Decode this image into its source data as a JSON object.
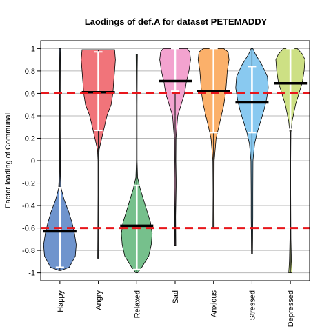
{
  "chart_data": {
    "type": "violin",
    "title": "Laodings of def.A for dataset PETEMADDY",
    "xlabel": "",
    "ylabel": "Factor loading of Communal",
    "ylim": [
      -1.07,
      1.07
    ],
    "yticks": [
      -1,
      -0.8,
      -0.6,
      -0.4,
      -0.2,
      0,
      0.2,
      0.4,
      0.6,
      0.8,
      1
    ],
    "ytick_labels": [
      "-1",
      "-0.8",
      "-0.6",
      "-0.4",
      "-0.2",
      "0",
      "0.2",
      "0.4",
      "0.6",
      "0.8",
      "1"
    ],
    "grid": true,
    "reference_lines": [
      0.6,
      -0.6
    ],
    "reference_line_color": "#e8161b",
    "categories": [
      "Happy",
      "Angry",
      "Relaxed",
      "Sad",
      "Anxious",
      "Stressed",
      "Depressed"
    ],
    "colors": [
      "#6f94cd",
      "#f1747a",
      "#76c08c",
      "#f3a3cf",
      "#fbb06a",
      "#89c9f0",
      "#cde084"
    ],
    "medians": [
      -0.63,
      0.61,
      -0.58,
      0.71,
      0.62,
      0.52,
      0.69
    ],
    "quartiles": [
      [
        -0.95,
        -0.24
      ],
      [
        0.27,
        0.97
      ],
      [
        -0.97,
        -0.22
      ],
      [
        0.62,
        1.0
      ],
      [
        0.25,
        1.0
      ],
      [
        0.25,
        0.84
      ],
      [
        0.28,
        1.0
      ]
    ],
    "ranges": [
      [
        -0.98,
        1.0
      ],
      [
        -0.87,
        0.99
      ],
      [
        -1.0,
        0.95
      ],
      [
        -0.76,
        1.0
      ],
      [
        -0.6,
        1.0
      ],
      [
        -0.83,
        1.0
      ],
      [
        -1.0,
        1.0
      ]
    ],
    "density_profiles": [
      [
        [
          -0.98,
          0.05
        ],
        [
          -0.95,
          0.55
        ],
        [
          -0.85,
          0.9
        ],
        [
          -0.75,
          0.95
        ],
        [
          -0.65,
          0.85
        ],
        [
          -0.55,
          0.7
        ],
        [
          -0.45,
          0.5
        ],
        [
          -0.35,
          0.25
        ],
        [
          -0.25,
          0.08
        ],
        [
          -0.1,
          0.03
        ],
        [
          0.1,
          0.03
        ],
        [
          0.3,
          0.02
        ],
        [
          0.6,
          0.02
        ],
        [
          0.9,
          0.03
        ],
        [
          1.0,
          0.05
        ]
      ],
      [
        [
          -0.87,
          0.04
        ],
        [
          -0.7,
          0.03
        ],
        [
          -0.3,
          0.02
        ],
        [
          0.0,
          0.02
        ],
        [
          0.1,
          0.05
        ],
        [
          0.2,
          0.2
        ],
        [
          0.3,
          0.35
        ],
        [
          0.4,
          0.5
        ],
        [
          0.5,
          0.75
        ],
        [
          0.6,
          0.85
        ],
        [
          0.7,
          0.9
        ],
        [
          0.8,
          0.95
        ],
        [
          0.9,
          1.0
        ],
        [
          0.99,
          0.95
        ]
      ],
      [
        [
          -1.0,
          0.05
        ],
        [
          -0.95,
          0.3
        ],
        [
          -0.85,
          0.7
        ],
        [
          -0.75,
          0.85
        ],
        [
          -0.65,
          0.9
        ],
        [
          -0.55,
          0.8
        ],
        [
          -0.45,
          0.6
        ],
        [
          -0.35,
          0.4
        ],
        [
          -0.25,
          0.2
        ],
        [
          -0.15,
          0.05
        ],
        [
          0.0,
          0.02
        ],
        [
          0.5,
          0.02
        ],
        [
          0.8,
          0.03
        ],
        [
          0.95,
          0.04
        ]
      ],
      [
        [
          -0.76,
          0.04
        ],
        [
          -0.5,
          0.03
        ],
        [
          -0.2,
          0.06
        ],
        [
          0.0,
          0.04
        ],
        [
          0.2,
          0.05
        ],
        [
          0.4,
          0.15
        ],
        [
          0.5,
          0.35
        ],
        [
          0.6,
          0.55
        ],
        [
          0.7,
          0.65
        ],
        [
          0.8,
          0.8
        ],
        [
          0.9,
          0.9
        ],
        [
          0.97,
          0.85
        ],
        [
          1.0,
          0.7
        ]
      ],
      [
        [
          -0.6,
          0.04
        ],
        [
          -0.3,
          0.03
        ],
        [
          0.0,
          0.04
        ],
        [
          0.2,
          0.15
        ],
        [
          0.3,
          0.3
        ],
        [
          0.4,
          0.45
        ],
        [
          0.5,
          0.6
        ],
        [
          0.6,
          0.7
        ],
        [
          0.7,
          0.75
        ],
        [
          0.8,
          0.8
        ],
        [
          0.9,
          0.9
        ],
        [
          0.97,
          0.85
        ],
        [
          1.0,
          0.6
        ]
      ],
      [
        [
          -0.83,
          0.03
        ],
        [
          -0.5,
          0.05
        ],
        [
          -0.3,
          0.05
        ],
        [
          0.0,
          0.06
        ],
        [
          0.15,
          0.15
        ],
        [
          0.25,
          0.3
        ],
        [
          0.35,
          0.5
        ],
        [
          0.45,
          0.7
        ],
        [
          0.55,
          0.85
        ],
        [
          0.65,
          0.95
        ],
        [
          0.75,
          0.9
        ],
        [
          0.85,
          0.6
        ],
        [
          0.95,
          0.2
        ],
        [
          1.0,
          0.05
        ]
      ],
      [
        [
          -1.0,
          0.1
        ],
        [
          -0.9,
          0.06
        ],
        [
          -0.7,
          0.03
        ],
        [
          -0.3,
          0.02
        ],
        [
          0.0,
          0.02
        ],
        [
          0.25,
          0.03
        ],
        [
          0.35,
          0.1
        ],
        [
          0.5,
          0.3
        ],
        [
          0.6,
          0.5
        ],
        [
          0.7,
          0.7
        ],
        [
          0.8,
          0.8
        ],
        [
          0.9,
          0.85
        ],
        [
          0.95,
          0.7
        ],
        [
          1.0,
          0.4
        ]
      ]
    ]
  }
}
